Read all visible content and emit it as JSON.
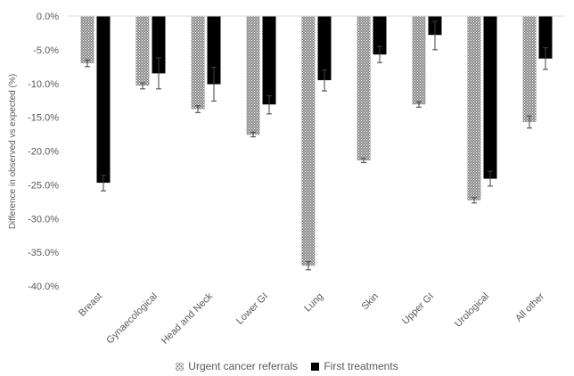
{
  "chart_data": {
    "type": "bar",
    "title": "",
    "xlabel": "",
    "ylabel": "Difference in observed vs expected (%)",
    "ylim": [
      -40,
      0
    ],
    "yticks": [
      "0.0%",
      "-5.0%",
      "-10.0%",
      "-15.0%",
      "-20.0%",
      "-25.0%",
      "-30.0%",
      "-35.0%",
      "-40.0%"
    ],
    "ytick_values": [
      0,
      -5,
      -10,
      -15,
      -20,
      -25,
      -30,
      -35,
      -40
    ],
    "categories": [
      "Breast",
      "Gynaecological",
      "Head and Neck",
      "Lower GI",
      "Lung",
      "Skin",
      "Upper GI",
      "Urological",
      "All other"
    ],
    "series": [
      {
        "name": "Urgent cancer referrals",
        "pattern": "hatch",
        "color": "#7f7f7f",
        "values": [
          -7.0,
          -10.3,
          -13.8,
          -17.6,
          -37.0,
          -21.4,
          -13.1,
          -27.3,
          -15.7
        ],
        "err_lower": [
          -7.5,
          -10.8,
          -14.3,
          -17.9,
          -37.6,
          -21.7,
          -13.5,
          -27.7,
          -16.6
        ],
        "err_upper": [
          -6.5,
          -9.9,
          -13.3,
          -17.2,
          -36.4,
          -21.1,
          -12.7,
          -26.9,
          -14.8
        ]
      },
      {
        "name": "First treatments",
        "pattern": "solid",
        "color": "#000000",
        "values": [
          -24.7,
          -8.5,
          -10.1,
          -13.1,
          -9.5,
          -5.7,
          -2.8,
          -24.1,
          -6.3
        ],
        "err_lower": [
          -25.9,
          -10.8,
          -12.6,
          -14.5,
          -11.1,
          -6.9,
          -5.0,
          -25.2,
          -7.9
        ],
        "err_upper": [
          -23.6,
          -6.2,
          -7.6,
          -11.8,
          -8.0,
          -4.5,
          -0.8,
          -23.0,
          -4.7
        ]
      }
    ],
    "grid": false,
    "legend": "bottom"
  }
}
